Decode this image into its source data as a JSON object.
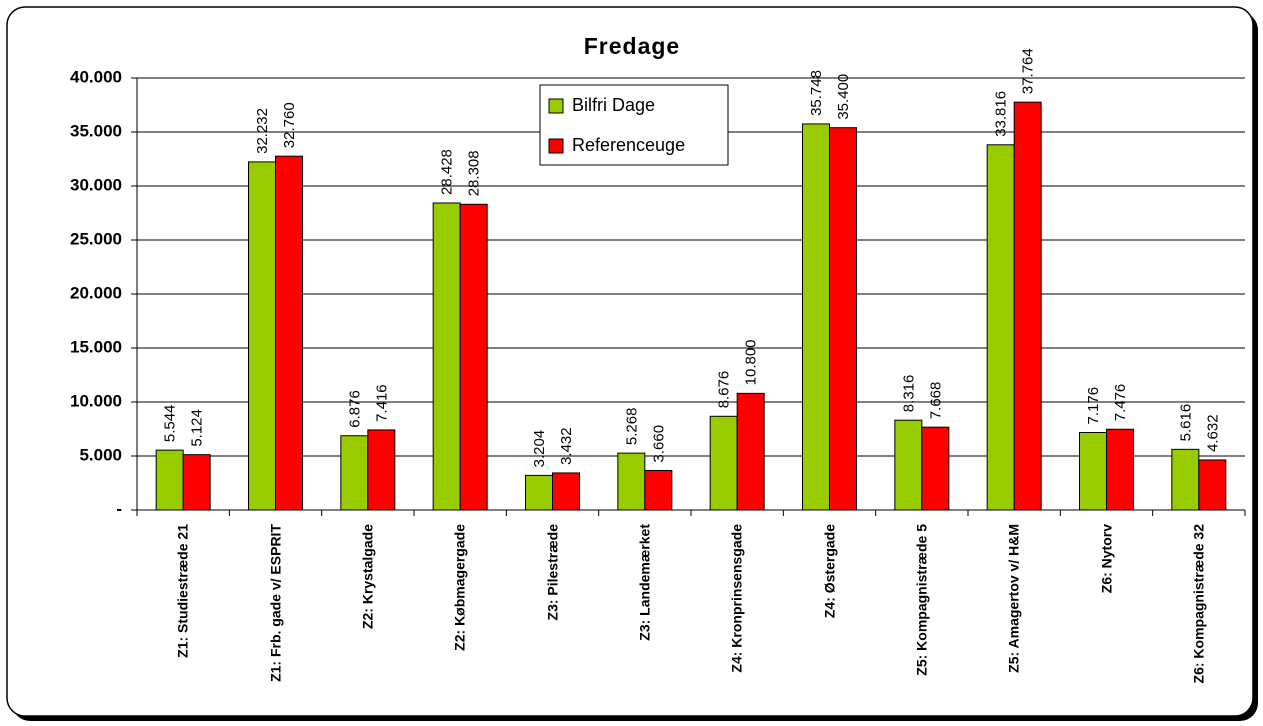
{
  "chart_data": {
    "type": "bar",
    "title": "Fredage",
    "categories": [
      "Z1: Studiestræde 21",
      "Z1: Frb. gade v/ ESPRIT",
      "Z2: Krystalgade",
      "Z2: Købmagergade",
      "Z3: Pilestræde",
      "Z3: Landemærket",
      "Z4: Kronprinsensgade",
      "Z4: Østergade",
      "Z5: Kompagnistræde 5",
      "Z5: Amagertov v/ H&M",
      "Z6: Nytorv",
      "Z6: Kompagnistræde 32"
    ],
    "series": [
      {
        "name": "Bilfri Dage",
        "color": "#99cc00",
        "values": [
          5544,
          32232,
          6876,
          28428,
          3204,
          5268,
          8676,
          35748,
          8316,
          33816,
          7176,
          5616
        ],
        "value_labels": [
          "5.544",
          "32.232",
          "6.876",
          "28.428",
          "3.204",
          "5.268",
          "8.676",
          "35.748",
          "8.316",
          "33.816",
          "7.176",
          "5.616"
        ]
      },
      {
        "name": "Referenceuge",
        "color": "#ff0000",
        "values": [
          5124,
          32760,
          7416,
          28308,
          3432,
          3660,
          10800,
          35400,
          7668,
          37764,
          7476,
          4632
        ],
        "value_labels": [
          "5.124",
          "32.760",
          "7.416",
          "28.308",
          "3.432",
          "3.660",
          "10.800",
          "35.400",
          "7.668",
          "37.764",
          "7.476",
          "4.632"
        ]
      }
    ],
    "ylim": [
      0,
      40000
    ],
    "yticks": [
      {
        "value": 0,
        "label": "-"
      },
      {
        "value": 5000,
        "label": "5.000"
      },
      {
        "value": 10000,
        "label": "10.000"
      },
      {
        "value": 15000,
        "label": "15.000"
      },
      {
        "value": 20000,
        "label": "20.000"
      },
      {
        "value": 25000,
        "label": "25.000"
      },
      {
        "value": 30000,
        "label": "30.000"
      },
      {
        "value": 35000,
        "label": "35.000"
      },
      {
        "value": 40000,
        "label": "40.000"
      }
    ],
    "grid": true
  }
}
